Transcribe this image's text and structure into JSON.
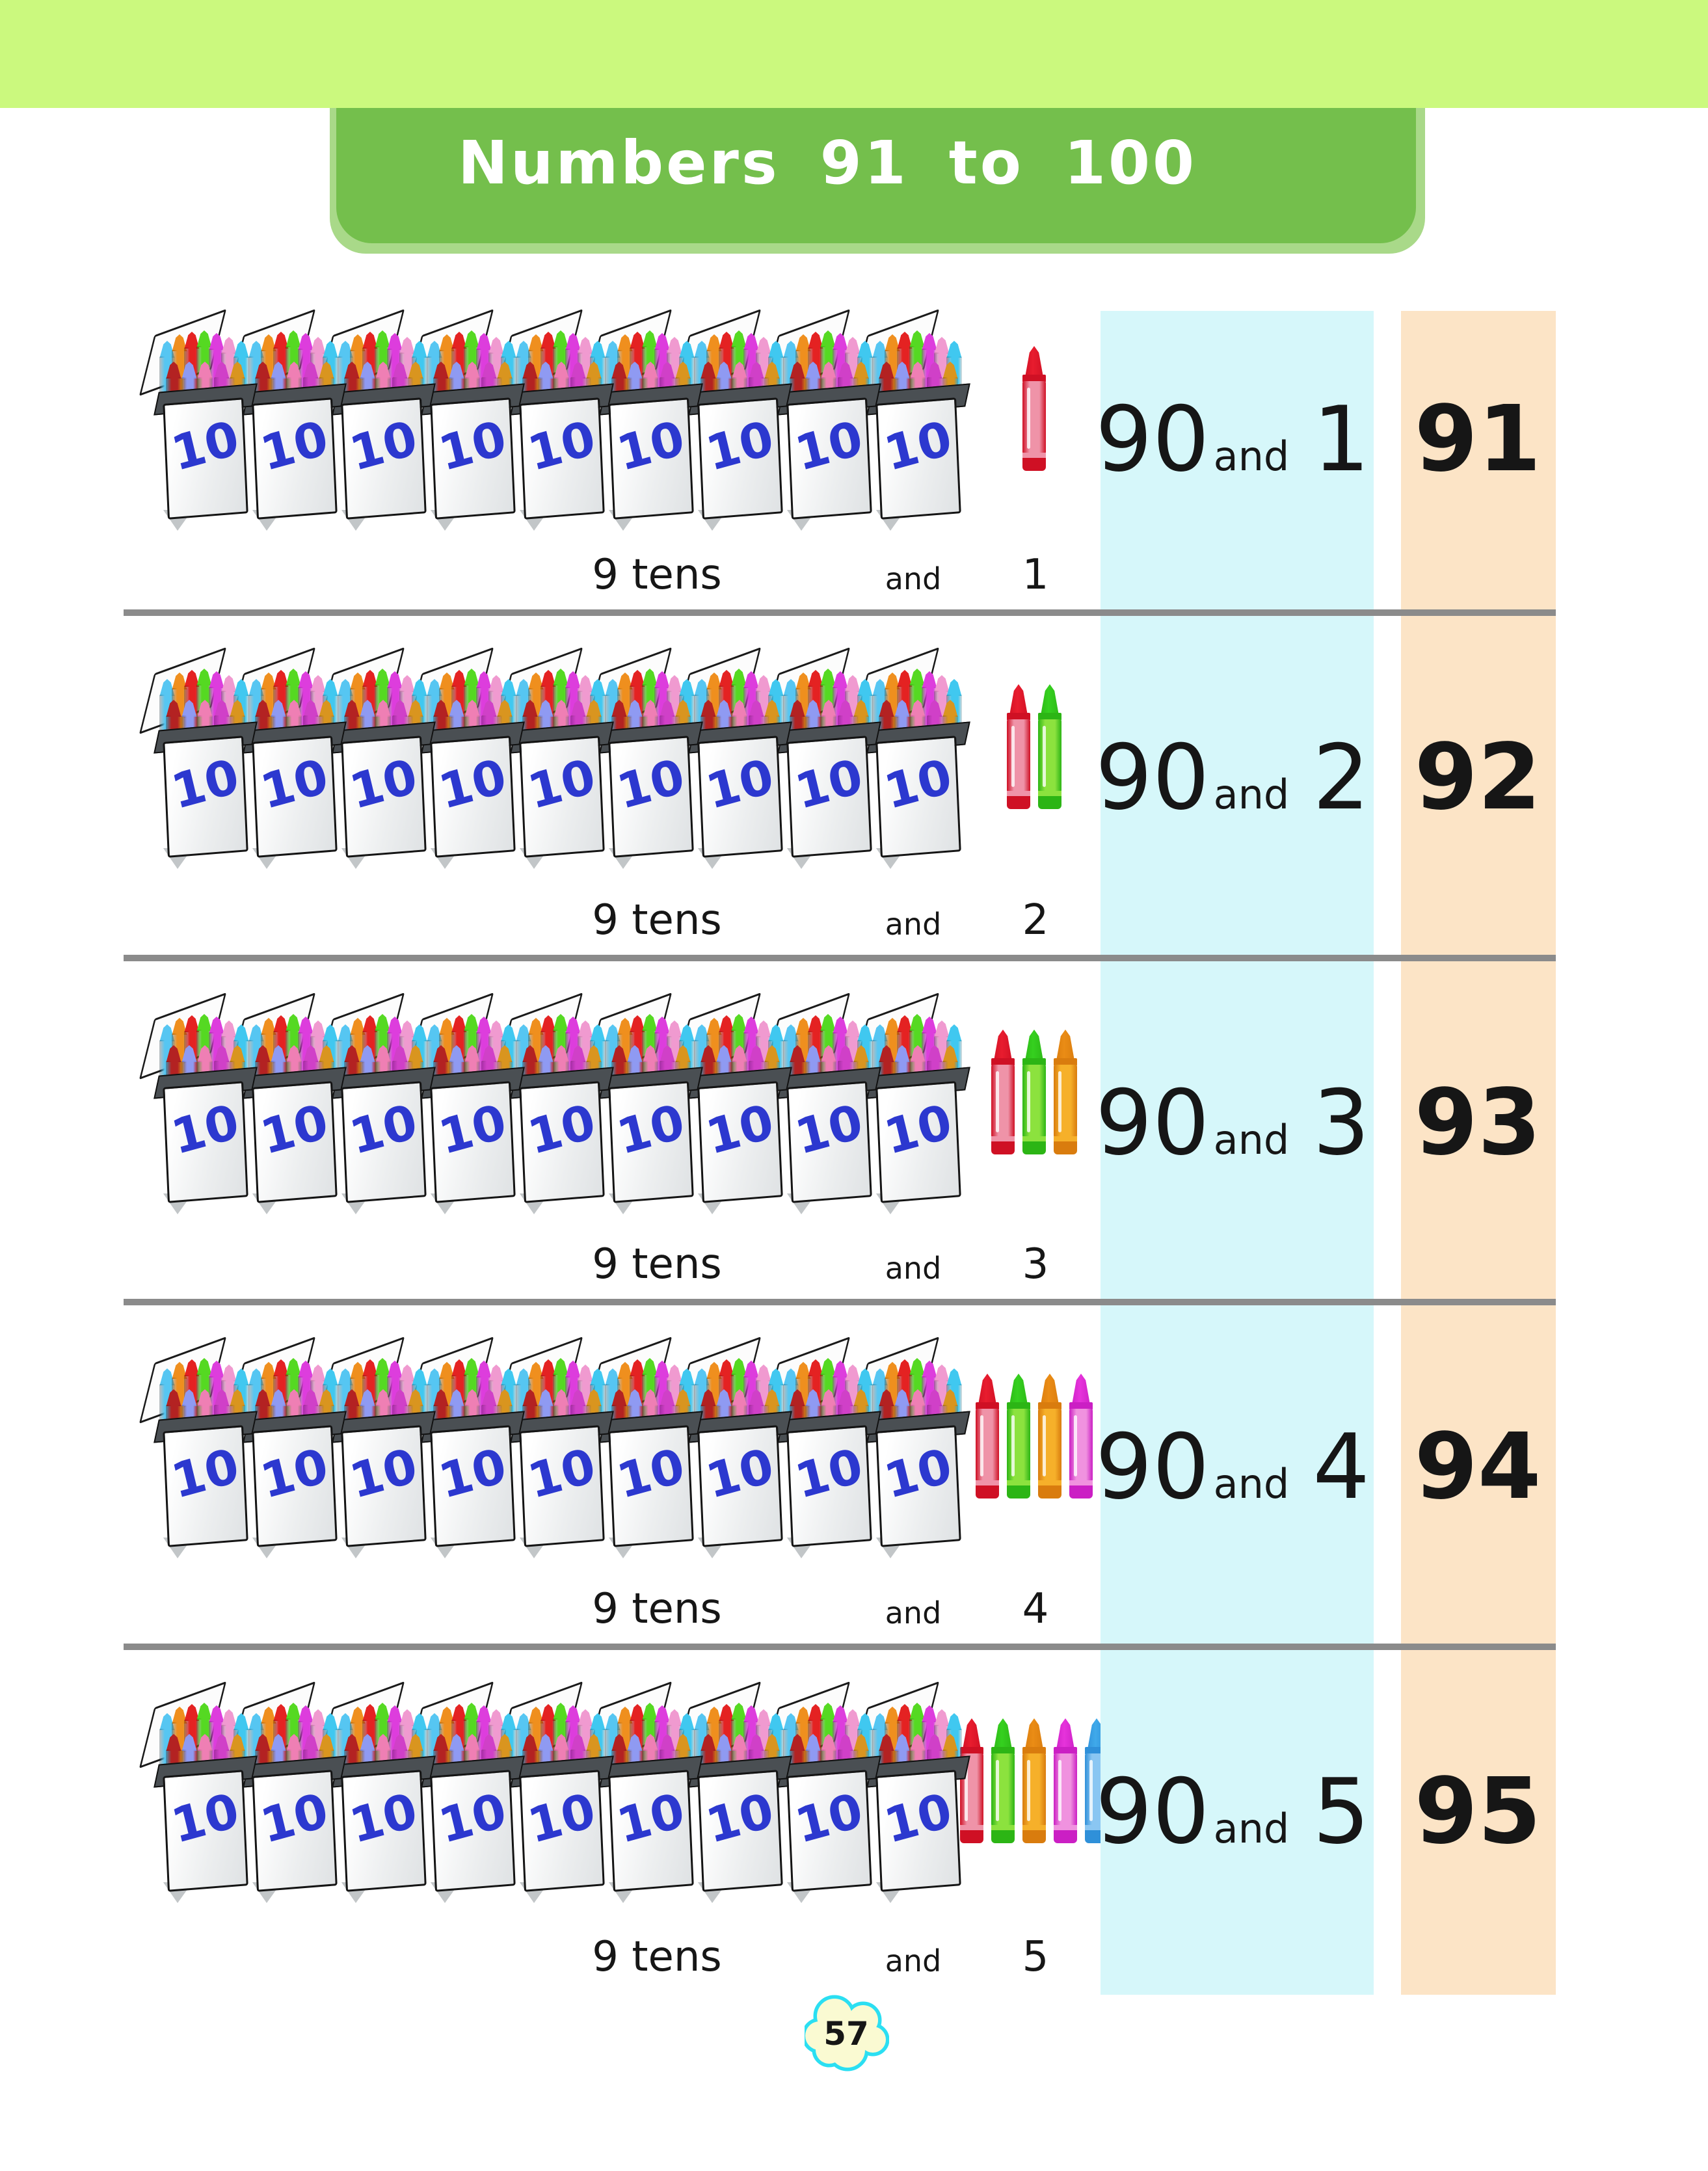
{
  "title": {
    "text": "Numbers 91 to 100"
  },
  "page_number": "57",
  "box": {
    "label": "10"
  },
  "rows": [
    {
      "tens_label": "9 tens",
      "and_label": "and",
      "ones_label": "1",
      "eq_tens": "90",
      "eq_and": "and",
      "eq_ones": "1",
      "result": "91",
      "ones_crayons": [
        "red"
      ]
    },
    {
      "tens_label": "9 tens",
      "and_label": "and",
      "ones_label": "2",
      "eq_tens": "90",
      "eq_and": "and",
      "eq_ones": "2",
      "result": "92",
      "ones_crayons": [
        "red",
        "green"
      ]
    },
    {
      "tens_label": "9 tens",
      "and_label": "and",
      "ones_label": "3",
      "eq_tens": "90",
      "eq_and": "and",
      "eq_ones": "3",
      "result": "93",
      "ones_crayons": [
        "red",
        "green",
        "orange"
      ]
    },
    {
      "tens_label": "9 tens",
      "and_label": "and",
      "ones_label": "4",
      "eq_tens": "90",
      "eq_and": "and",
      "eq_ones": "4",
      "result": "94",
      "ones_crayons": [
        "red",
        "green",
        "orange",
        "magenta"
      ]
    },
    {
      "tens_label": "9 tens",
      "and_label": "and",
      "ones_label": "5",
      "eq_tens": "90",
      "eq_and": "and",
      "eq_ones": "5",
      "result": "95",
      "ones_crayons": [
        "red",
        "green",
        "orange",
        "magenta",
        "blue"
      ]
    }
  ],
  "colors": {
    "banner": "#cbf97e",
    "title_bg": "#74bf4c",
    "title_shadow": "#a9d989",
    "band_blue": "#d6f7fa",
    "band_orange": "#fce4c6",
    "separator": "#8b8b8b",
    "box_label_blue": "#2c38cf",
    "ink": "#161616",
    "flower_fill": "#fafad2",
    "flower_stroke": "#2bdff2"
  },
  "crayon_palette": {
    "red": {
      "tip": "#e81c2e",
      "body": "#ef93a8",
      "dark": "#cf1024"
    },
    "green": {
      "tip": "#35d01f",
      "body": "#8ce23e",
      "dark": "#2cb515"
    },
    "orange": {
      "tip": "#ea8c15",
      "body": "#f6b02a",
      "dark": "#d97c0e"
    },
    "magenta": {
      "tip": "#e633db",
      "body": "#f092df",
      "dark": "#cb1fc4"
    },
    "blue": {
      "tip": "#3fa9ea",
      "body": "#8ac6f2",
      "dark": "#2f90d9"
    }
  },
  "box_crayons": {
    "back": [
      "#56c6f2",
      "#ef8f1e",
      "#e42222",
      "#55d922",
      "#dd3ddd",
      "#f09ad0",
      "#40c8f0"
    ],
    "front": [
      "#b32222",
      "#8f9af2",
      "#ef7fb4",
      "#d040c8",
      "#d9951f"
    ]
  }
}
